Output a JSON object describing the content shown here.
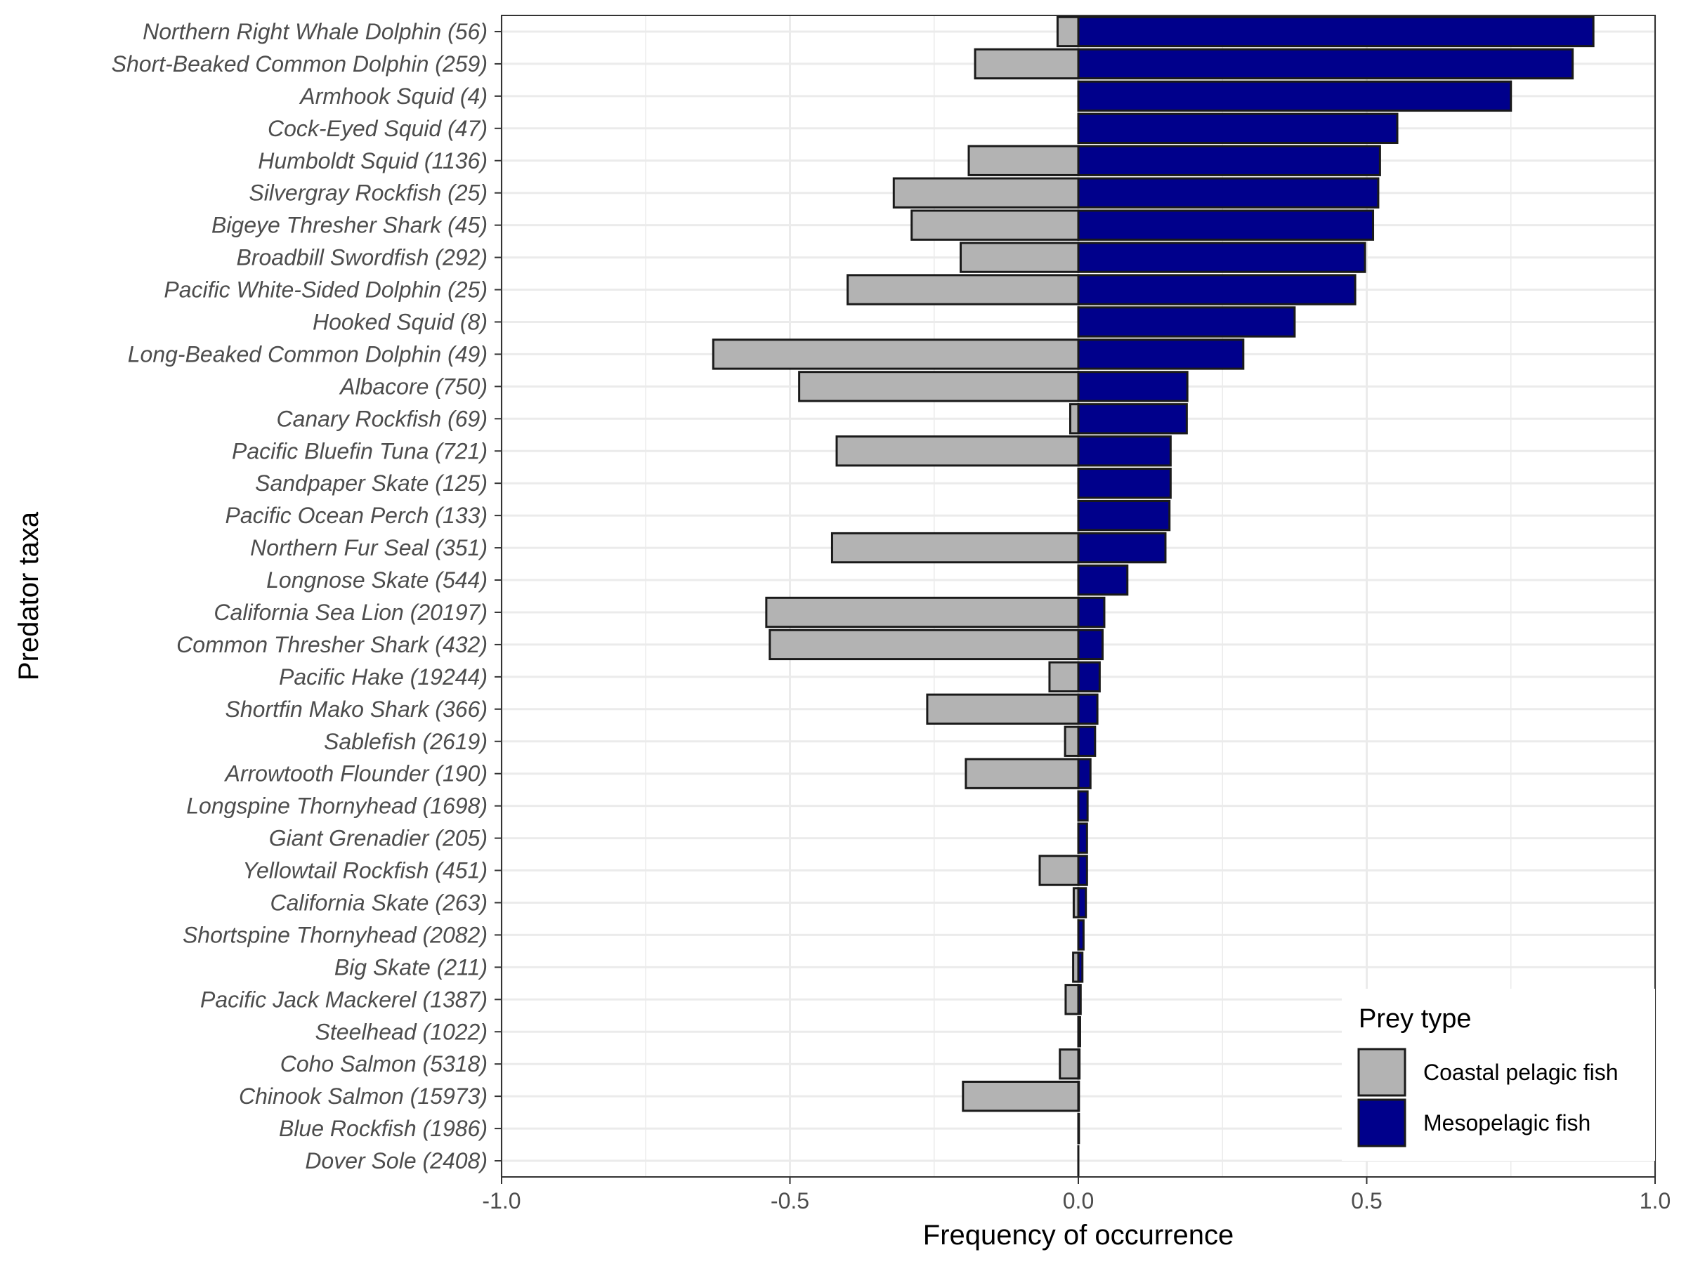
{
  "chart_data": {
    "type": "bar",
    "orientation": "horizontal",
    "xlabel": "Frequency of occurrence",
    "ylabel": "Predator taxa",
    "xlim": [
      -1.0,
      1.0
    ],
    "xticks": [
      "-1.0",
      "-0.5",
      "0.0",
      "0.5",
      "1.0"
    ],
    "xtick_values": [
      -1.0,
      -0.5,
      0.0,
      0.5,
      1.0
    ],
    "grid": true,
    "legend": {
      "title": "Prey type",
      "position": "bottom-right",
      "entries": [
        "Coastal pelagic fish",
        "Mesopelagic fish"
      ]
    },
    "colors": {
      "coastal": "#b3b3b3",
      "mesopelagic": "#00008b",
      "outline": "#1a1a1a",
      "grid": "#ebebeb",
      "panel_border": "#333333"
    },
    "categories": [
      "Northern Right Whale Dolphin (56)",
      "Short-Beaked Common Dolphin (259)",
      "Armhook Squid (4)",
      "Cock-Eyed Squid (47)",
      "Humboldt Squid (1136)",
      "Silvergray Rockfish (25)",
      "Bigeye Thresher Shark (45)",
      "Broadbill Swordfish (292)",
      "Pacific White-Sided Dolphin (25)",
      "Hooked Squid (8)",
      "Long-Beaked Common Dolphin (49)",
      "Albacore (750)",
      "Canary Rockfish (69)",
      "Pacific Bluefin Tuna (721)",
      "Sandpaper Skate (125)",
      "Pacific Ocean Perch (133)",
      "Northern Fur Seal (351)",
      "Longnose Skate (544)",
      "California Sea Lion (20197)",
      "Common Thresher Shark (432)",
      "Pacific Hake (19244)",
      "Shortfin Mako Shark (366)",
      "Sablefish (2619)",
      "Arrowtooth Flounder (190)",
      "Longspine Thornyhead (1698)",
      "Giant Grenadier (205)",
      "Yellowtail Rockfish (451)",
      "California Skate (263)",
      "Shortspine Thornyhead (2082)",
      "Big Skate (211)",
      "Pacific Jack Mackerel (1387)",
      "Steelhead (1022)",
      "Coho Salmon (5318)",
      "Chinook Salmon (15973)",
      "Blue Rockfish (1986)",
      "Dover Sole (2408)"
    ],
    "series": [
      {
        "name": "Coastal pelagic fish",
        "values": [
          -0.036,
          -0.179,
          0,
          0,
          -0.19,
          -0.32,
          -0.289,
          -0.204,
          -0.4,
          0,
          -0.633,
          -0.484,
          -0.014,
          -0.419,
          0,
          0,
          -0.427,
          0,
          -0.541,
          -0.535,
          -0.05,
          -0.262,
          -0.023,
          -0.195,
          0,
          0,
          -0.067,
          -0.008,
          0,
          -0.009,
          -0.022,
          0,
          -0.032,
          -0.2,
          0,
          0
        ]
      },
      {
        "name": "Mesopelagic fish",
        "values": [
          0.893,
          0.857,
          0.75,
          0.553,
          0.523,
          0.52,
          0.511,
          0.497,
          0.48,
          0.375,
          0.286,
          0.189,
          0.188,
          0.16,
          0.16,
          0.158,
          0.151,
          0.085,
          0.045,
          0.042,
          0.037,
          0.033,
          0.029,
          0.021,
          0.016,
          0.015,
          0.015,
          0.013,
          0.009,
          0.007,
          0.004,
          0.003,
          0.002,
          0.001,
          0.001,
          0.0
        ]
      }
    ]
  }
}
